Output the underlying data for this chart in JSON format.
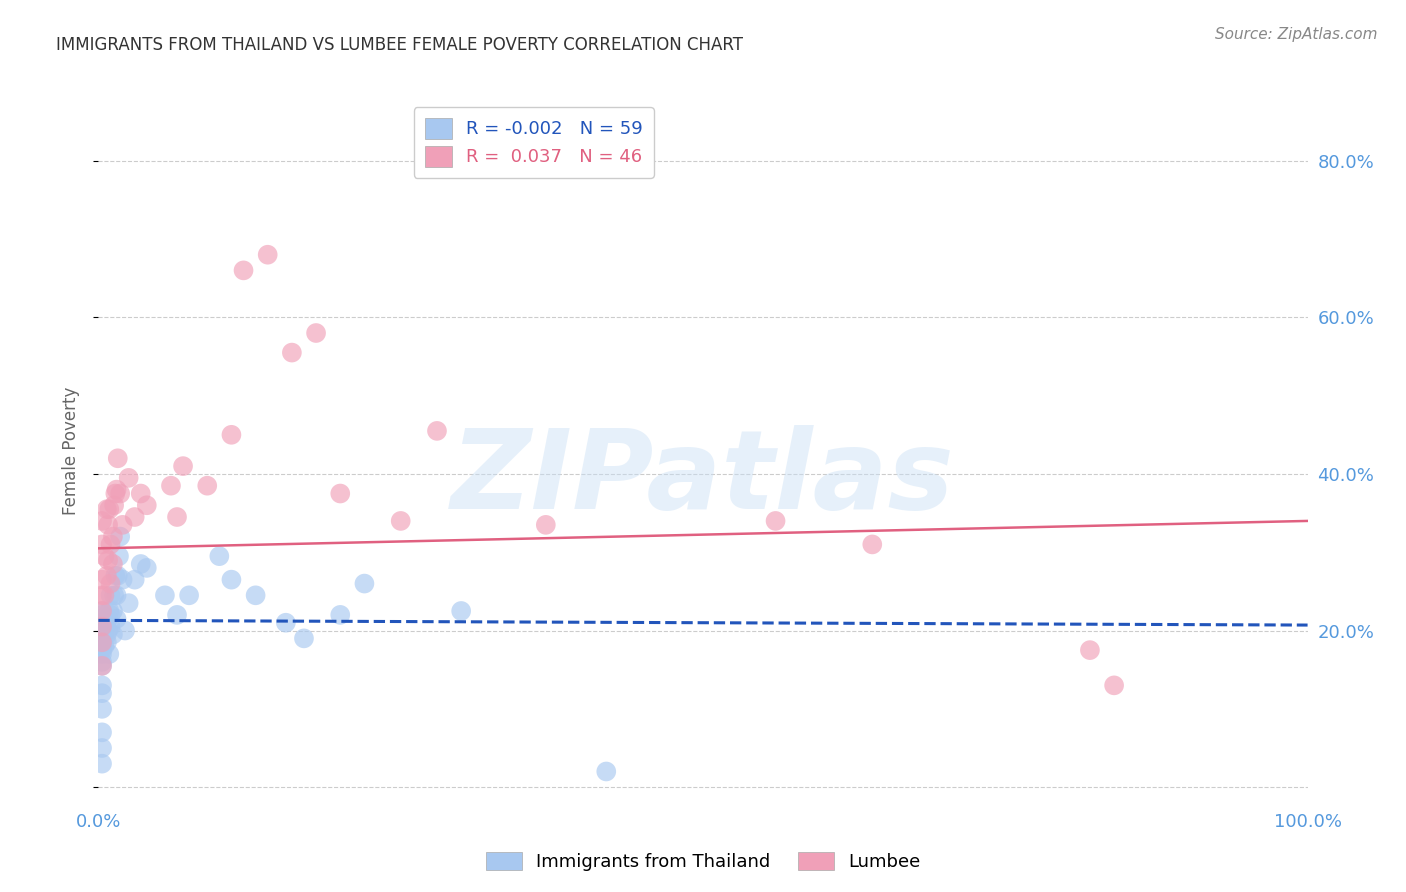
{
  "title": "IMMIGRANTS FROM THAILAND VS LUMBEE FEMALE POVERTY CORRELATION CHART",
  "source": "Source: ZipAtlas.com",
  "ylabel": "Female Poverty",
  "watermark": "ZIPatlas",
  "xlim": [
    0.0,
    1.0
  ],
  "ylim": [
    -0.02,
    0.88
  ],
  "x_ticks": [
    0.0,
    0.2,
    0.4,
    0.6,
    0.8,
    1.0
  ],
  "x_tick_labels": [
    "0.0%",
    "",
    "",
    "",
    "",
    "100.0%"
  ],
  "y_ticks": [
    0.0,
    0.2,
    0.4,
    0.6,
    0.8
  ],
  "y_tick_labels_right": [
    "",
    "20.0%",
    "40.0%",
    "60.0%",
    "80.0%"
  ],
  "blue_R": "-0.002",
  "blue_N": "59",
  "pink_R": "0.037",
  "pink_N": "46",
  "blue_color": "#a8c8f0",
  "pink_color": "#f0a0b8",
  "blue_line_color": "#2255bb",
  "pink_line_color": "#e06080",
  "grid_color": "#cccccc",
  "title_color": "#333333",
  "axis_label_color": "#5599dd",
  "legend_blue_label": "Immigrants from Thailand",
  "legend_pink_label": "Lumbee",
  "blue_scatter_x": [
    0.003,
    0.003,
    0.003,
    0.003,
    0.003,
    0.003,
    0.003,
    0.003,
    0.003,
    0.003,
    0.003,
    0.003,
    0.003,
    0.003,
    0.003,
    0.003,
    0.003,
    0.003,
    0.003,
    0.003,
    0.005,
    0.005,
    0.005,
    0.007,
    0.007,
    0.008,
    0.008,
    0.009,
    0.009,
    0.01,
    0.01,
    0.01,
    0.012,
    0.012,
    0.013,
    0.014,
    0.015,
    0.015,
    0.016,
    0.017,
    0.018,
    0.02,
    0.022,
    0.025,
    0.03,
    0.035,
    0.04,
    0.055,
    0.065,
    0.075,
    0.1,
    0.11,
    0.13,
    0.155,
    0.17,
    0.2,
    0.22,
    0.3,
    0.42
  ],
  "blue_scatter_y": [
    0.03,
    0.05,
    0.07,
    0.1,
    0.12,
    0.13,
    0.155,
    0.16,
    0.17,
    0.175,
    0.18,
    0.185,
    0.19,
    0.195,
    0.2,
    0.205,
    0.21,
    0.215,
    0.22,
    0.225,
    0.18,
    0.2,
    0.21,
    0.185,
    0.195,
    0.2,
    0.215,
    0.225,
    0.17,
    0.205,
    0.22,
    0.245,
    0.195,
    0.225,
    0.245,
    0.27,
    0.215,
    0.245,
    0.27,
    0.295,
    0.32,
    0.265,
    0.2,
    0.235,
    0.265,
    0.285,
    0.28,
    0.245,
    0.22,
    0.245,
    0.295,
    0.265,
    0.245,
    0.21,
    0.19,
    0.22,
    0.26,
    0.225,
    0.02
  ],
  "pink_scatter_x": [
    0.003,
    0.003,
    0.003,
    0.003,
    0.003,
    0.003,
    0.003,
    0.003,
    0.005,
    0.005,
    0.007,
    0.007,
    0.008,
    0.008,
    0.009,
    0.01,
    0.01,
    0.012,
    0.012,
    0.013,
    0.014,
    0.015,
    0.016,
    0.018,
    0.02,
    0.025,
    0.03,
    0.035,
    0.04,
    0.06,
    0.065,
    0.07,
    0.09,
    0.11,
    0.12,
    0.14,
    0.16,
    0.18,
    0.2,
    0.25,
    0.28,
    0.37,
    0.56,
    0.64,
    0.82,
    0.84
  ],
  "pink_scatter_y": [
    0.155,
    0.185,
    0.205,
    0.225,
    0.245,
    0.265,
    0.31,
    0.34,
    0.245,
    0.295,
    0.27,
    0.355,
    0.29,
    0.335,
    0.355,
    0.26,
    0.31,
    0.285,
    0.32,
    0.36,
    0.375,
    0.38,
    0.42,
    0.375,
    0.335,
    0.395,
    0.345,
    0.375,
    0.36,
    0.385,
    0.345,
    0.41,
    0.385,
    0.45,
    0.66,
    0.68,
    0.555,
    0.58,
    0.375,
    0.34,
    0.455,
    0.335,
    0.34,
    0.31,
    0.175,
    0.13
  ],
  "blue_line_x": [
    0.0,
    1.0
  ],
  "blue_line_y": [
    0.213,
    0.207
  ],
  "pink_line_x": [
    0.0,
    1.0
  ],
  "pink_line_y": [
    0.305,
    0.34
  ],
  "background_color": "#ffffff"
}
